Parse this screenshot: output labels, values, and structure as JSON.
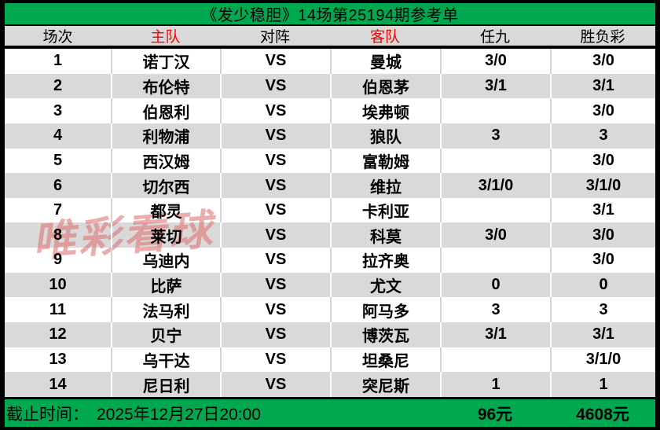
{
  "title": "《发少稳胆》14场第25194期参考单",
  "table": {
    "columns": [
      {
        "key": "no",
        "label": "场次"
      },
      {
        "key": "home",
        "label": "主队"
      },
      {
        "key": "vs",
        "label": "对阵"
      },
      {
        "key": "away",
        "label": "客队"
      },
      {
        "key": "ren9",
        "label": "任九"
      },
      {
        "key": "sfc",
        "label": "胜负彩"
      }
    ],
    "rows": [
      {
        "no": "1",
        "home": "诺丁汉",
        "vs": "VS",
        "away": "曼城",
        "ren9": "3/0",
        "sfc": "3/0"
      },
      {
        "no": "2",
        "home": "布伦特",
        "vs": "VS",
        "away": "伯恩茅",
        "ren9": "3/1",
        "sfc": "3/1"
      },
      {
        "no": "3",
        "home": "伯恩利",
        "vs": "VS",
        "away": "埃弗顿",
        "ren9": "",
        "sfc": "3/0"
      },
      {
        "no": "4",
        "home": "利物浦",
        "vs": "VS",
        "away": "狼队",
        "ren9": "3",
        "sfc": "3"
      },
      {
        "no": "5",
        "home": "西汉姆",
        "vs": "VS",
        "away": "富勒姆",
        "ren9": "",
        "sfc": "3/0"
      },
      {
        "no": "6",
        "home": "切尔西",
        "vs": "VS",
        "away": "维拉",
        "ren9": "3/1/0",
        "sfc": "3/1/0"
      },
      {
        "no": "7",
        "home": "都灵",
        "vs": "VS",
        "away": "卡利亚",
        "ren9": "",
        "sfc": "3/1"
      },
      {
        "no": "8",
        "home": "莱切",
        "vs": "VS",
        "away": "科莫",
        "ren9": "3/0",
        "sfc": "3/0"
      },
      {
        "no": "9",
        "home": "乌迪内",
        "vs": "VS",
        "away": "拉齐奥",
        "ren9": "",
        "sfc": "3/0"
      },
      {
        "no": "10",
        "home": "比萨",
        "vs": "VS",
        "away": "尤文",
        "ren9": "0",
        "sfc": "0"
      },
      {
        "no": "11",
        "home": "法马利",
        "vs": "VS",
        "away": "阿马多",
        "ren9": "3",
        "sfc": "3"
      },
      {
        "no": "12",
        "home": "贝宁",
        "vs": "VS",
        "away": "博茨瓦",
        "ren9": "3/1",
        "sfc": "3/1"
      },
      {
        "no": "13",
        "home": "乌干达",
        "vs": "VS",
        "away": "坦桑尼",
        "ren9": "",
        "sfc": "3/1/0"
      },
      {
        "no": "14",
        "home": "尼日利",
        "vs": "VS",
        "away": "突尼斯",
        "ren9": "1",
        "sfc": "1"
      }
    ]
  },
  "watermark": "唯彩看球",
  "footer": {
    "deadline_label": "截止时间：",
    "deadline_value": "2025年12月27日20:00",
    "ren9_total": "96元",
    "sfc_total": "4608元"
  },
  "colors": {
    "title_bar_green": "#00a94f",
    "alt_row_gray": "#d9d9d9",
    "header_team_red": "#ff0000",
    "watermark_pink": "#e07a7a",
    "border_black": "#000000"
  }
}
